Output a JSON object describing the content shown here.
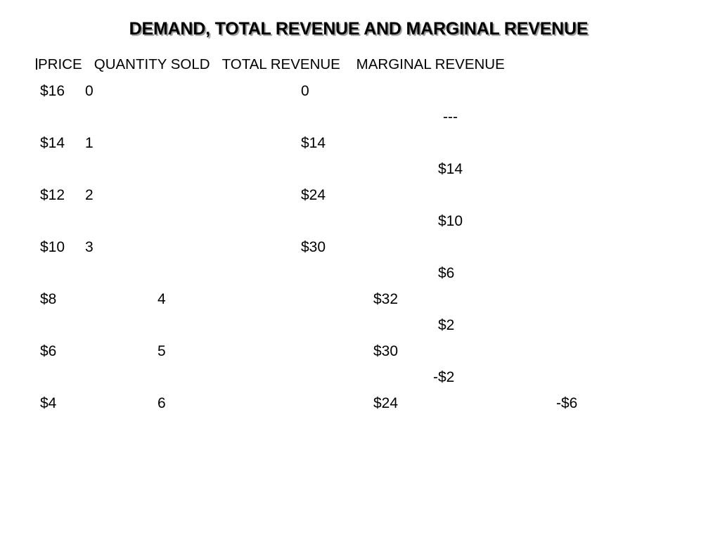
{
  "title": "DEMAND, TOTAL REVENUE AND MARGINAL REVENUE",
  "headers": {
    "price": "PRICE",
    "quantity": "QUANTITY SOLD",
    "total_revenue": "TOTAL REVENUE",
    "marginal_revenue": "MARGINAL REVENUE"
  },
  "rows": [
    {
      "price": "$16",
      "quantity": "0",
      "total_revenue": "0"
    },
    {
      "price": "$14",
      "quantity": "1",
      "total_revenue": "$14"
    },
    {
      "price": "$12",
      "quantity": "2",
      "total_revenue": "$24"
    },
    {
      "price": "$10",
      "quantity": "3",
      "total_revenue": "$30"
    },
    {
      "price": "$8",
      "quantity": "4",
      "total_revenue": "$32"
    },
    {
      "price": "$6",
      "quantity": "5",
      "total_revenue": "$30"
    },
    {
      "price": "$4",
      "quantity": "6",
      "total_revenue": "$24",
      "marginal_revenue": "-$6"
    }
  ],
  "marginal_revenues": [
    "---",
    "$14",
    "$10",
    "$6",
    "$2",
    "-$2"
  ]
}
